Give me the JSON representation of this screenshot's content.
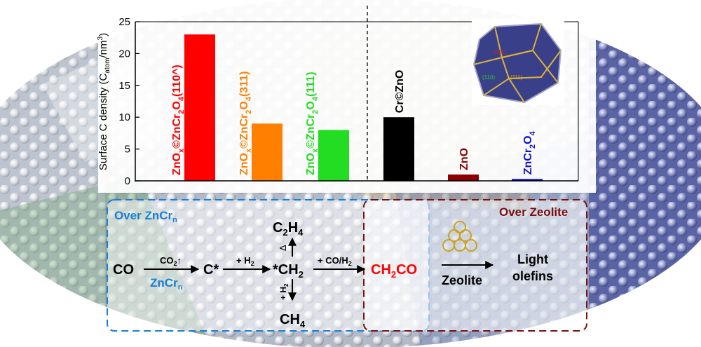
{
  "chart_data": {
    "type": "bar",
    "ylabel_main": "Surface C density (C",
    "ylabel_sub": "atom",
    "ylabel_tail": "/nm",
    "ylabel_sup": "3",
    "ylabel_close": ")",
    "ylim": [
      0,
      25
    ],
    "yticks": [
      "0",
      "5",
      "10",
      "15",
      "20",
      "25"
    ],
    "ytick_values": [
      0,
      5,
      10,
      15,
      20,
      25
    ],
    "bars": [
      {
        "value": 23,
        "color": "#ff0000",
        "label_parts": [
          [
            "ZnO",
            ""
          ],
          [
            "x",
            "sub"
          ],
          [
            "©ZnCr",
            ""
          ],
          [
            "2",
            "sub"
          ],
          [
            "O",
            ""
          ],
          [
            "4",
            "sub"
          ],
          [
            "(110^)",
            ""
          ]
        ]
      },
      {
        "value": 9,
        "color": "#ff8000",
        "label_parts": [
          [
            "ZnO",
            ""
          ],
          [
            "x",
            "sub"
          ],
          [
            "©ZnCr",
            ""
          ],
          [
            "2",
            "sub"
          ],
          [
            "O",
            ""
          ],
          [
            "4",
            "sub"
          ],
          [
            "(311)",
            ""
          ]
        ]
      },
      {
        "value": 8,
        "color": "#22dd22",
        "label_parts": [
          [
            "ZnO",
            ""
          ],
          [
            "x",
            "sub"
          ],
          [
            "©ZnCr",
            ""
          ],
          [
            "2",
            "sub"
          ],
          [
            "O",
            ""
          ],
          [
            "4",
            "sub"
          ],
          [
            "(111)",
            ""
          ]
        ]
      },
      {
        "value": 10,
        "color": "#000000",
        "label_color": "#000000",
        "label_parts": [
          [
            "Cr©ZnO",
            ""
          ]
        ]
      },
      {
        "value": 1,
        "color": "#8b0000",
        "label_color": "#8b0000",
        "label_parts": [
          [
            "ZnO",
            ""
          ]
        ]
      },
      {
        "value": 0.3,
        "color": "#1010cc",
        "label_color": "#1010cc",
        "label_parts": [
          [
            "ZnCr",
            ""
          ],
          [
            "2",
            "sub"
          ],
          [
            "O",
            ""
          ],
          [
            "4",
            "sub"
          ]
        ]
      }
    ],
    "inset_labels": [
      "(311)",
      "(110)",
      "(111)"
    ]
  },
  "scheme": {
    "box1_title": "Over ZnCr",
    "box1_title_sub": "n",
    "box2_title": "Over Zeolite",
    "co": "CO",
    "co2": "CO",
    "co2_sub": "2",
    "co2_arrow": "↑",
    "catalyst": "ZnCr",
    "catalyst_sub": "n",
    "c_star": "C*",
    "h2_plus": "+ H",
    "h2_sub": "2",
    "ch2": "*CH",
    "ch2_sub": "2",
    "c2h4_a": "C",
    "c2h4_b": "H",
    "c2h4_sub1": "2",
    "c2h4_sub2": "4",
    "delta": "Δ",
    "vert_h2": "+ H",
    "vert_h2_sub": "2",
    "ch4": "CH",
    "ch4_sub": "4",
    "co_h2": "+ CO/H",
    "co_h2_sub": "2",
    "ketene_a": "CH",
    "ketene_sub": "2",
    "ketene_b": "CO",
    "zeolite": "Zeolite",
    "product_line1": "Light",
    "product_line2": "olefins"
  },
  "colors": {
    "box1": "#1a7fd4",
    "box2": "#7a1010",
    "ketene": "#ff0000",
    "axis": "#000000"
  }
}
